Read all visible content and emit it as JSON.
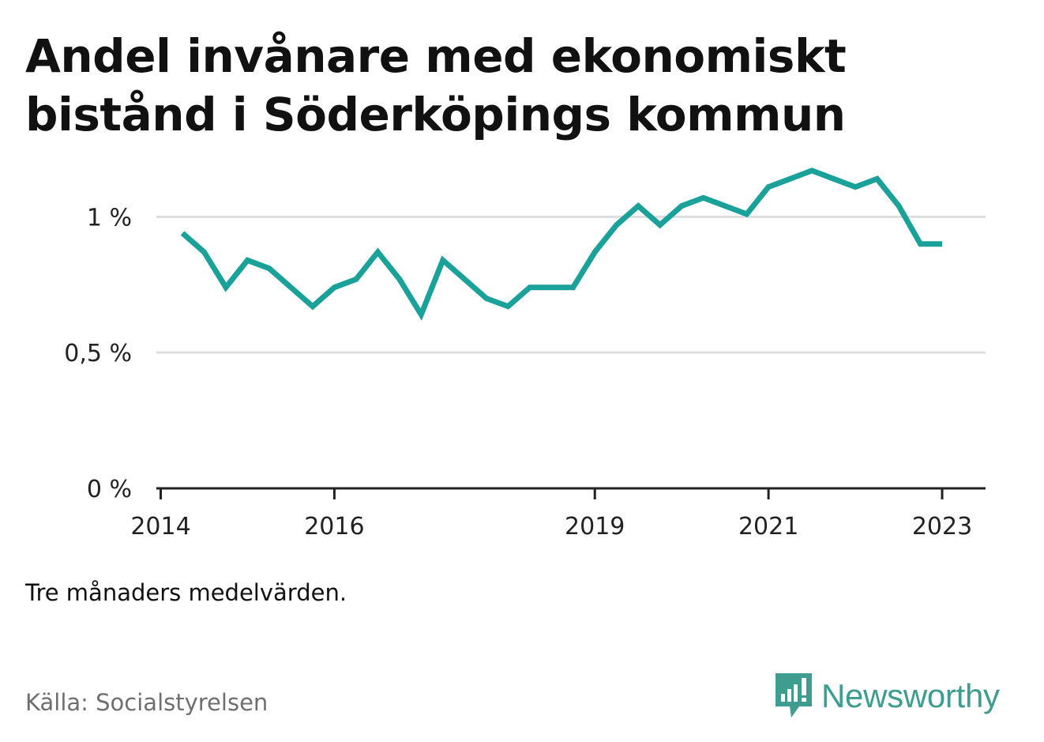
{
  "title": "Andel invånare med ekonomiskt bistånd i Söderköpings kommun",
  "note": "Tre månaders medelvärden.",
  "source": "Källa: Socialstyrelsen",
  "brand": {
    "name": "Newsworthy",
    "icon": "bar-chart-speech-bubble-icon",
    "color": "#3f9d8f"
  },
  "colors": {
    "line": "#1aa199",
    "grid": "#dddddd",
    "axis": "#222222"
  },
  "chart_data": {
    "type": "line",
    "title": "Andel invånare med ekonomiskt bistånd i Söderköpings kommun",
    "xlabel": "",
    "ylabel": "",
    "xlim": [
      2013.95,
      2023.5
    ],
    "ylim": [
      0,
      1.1
    ],
    "y_ticks": [
      0,
      0.5,
      1
    ],
    "y_tick_labels": [
      "0 %",
      "0,5 %",
      "1 %"
    ],
    "x_ticks": [
      2014,
      2016,
      2019,
      2021,
      2023
    ],
    "x_tick_labels": [
      "2014",
      "2016",
      "2019",
      "2021",
      "2023"
    ],
    "grid": true,
    "series": [
      {
        "x": [
          "2014-04",
          "2014-07",
          "2014-10",
          "2015-01",
          "2015-04",
          "2015-07",
          "2015-10",
          "2016-01",
          "2016-04",
          "2016-07",
          "2016-10",
          "2017-01",
          "2017-04",
          "2017-07",
          "2017-10",
          "2018-01",
          "2018-04",
          "2018-07",
          "2018-10",
          "2019-01",
          "2019-04",
          "2019-07",
          "2019-10",
          "2020-01",
          "2020-04",
          "2020-07",
          "2020-10",
          "2021-01",
          "2021-04",
          "2021-07",
          "2021-10",
          "2022-01",
          "2022-04",
          "2022-07",
          "2022-10",
          "2023-01"
        ],
        "values": [
          0.94,
          0.87,
          0.74,
          0.84,
          0.81,
          0.74,
          0.67,
          0.74,
          0.77,
          0.87,
          0.77,
          0.64,
          0.84,
          0.77,
          0.7,
          0.67,
          0.74,
          0.74,
          0.74,
          0.87,
          0.97,
          1.04,
          0.97,
          1.04,
          1.07,
          1.04,
          1.01,
          1.11,
          1.14,
          1.17,
          1.14,
          1.11,
          1.14,
          1.04,
          0.9,
          0.9
        ]
      }
    ]
  }
}
